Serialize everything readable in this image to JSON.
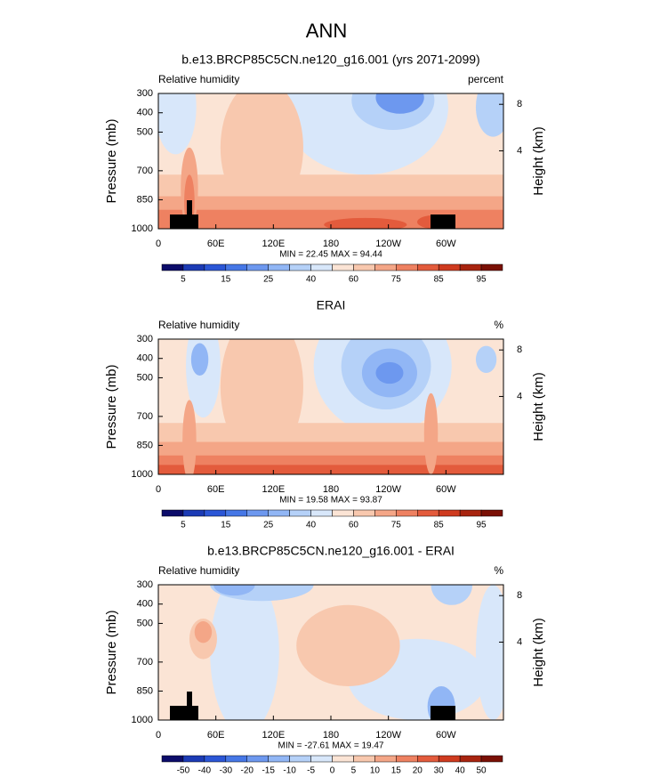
{
  "suptitle": "ANN",
  "chart_data": [
    {
      "type": "contour",
      "title": "b.e13.BRCP85C5CN.ne120_g16.001 (yrs 2071-2099)",
      "left_label": "Relative humidity",
      "right_label": "percent",
      "ylabel": "Pressure (mb)",
      "y2label": "Height (km)",
      "xlim": [
        0,
        360
      ],
      "ylim": [
        1000,
        300
      ],
      "xticks": [
        0,
        {
          "value": 60,
          "label": "60E"
        },
        {
          "value": 120,
          "label": "120E"
        },
        180,
        {
          "value": 240,
          "label": "120W"
        },
        {
          "value": 300,
          "label": "60W"
        }
      ],
      "yticks": [
        300,
        400,
        500,
        700,
        850,
        1000
      ],
      "y2ticks": [
        4,
        8
      ],
      "stats": "MIN = 22.45  MAX = 94.44",
      "colorbar": {
        "labels": [
          5,
          15,
          25,
          40,
          60,
          75,
          85,
          95
        ],
        "colors": [
          "#0c0c6a",
          "#1c3bb5",
          "#2b56d6",
          "#4677e6",
          "#6d98ef",
          "#91b6f5",
          "#b5d1f8",
          "#d8e7fa",
          "#fbe4d5",
          "#f8c8ae",
          "#f4a687",
          "#ee8161",
          "#e35b3c",
          "#cf3b1f",
          "#a8240f",
          "#7a1005"
        ]
      }
    },
    {
      "type": "contour",
      "title": "ERAI",
      "left_label": "Relative humidity",
      "right_label": "%",
      "ylabel": "Pressure (mb)",
      "y2label": "Height (km)",
      "xlim": [
        0,
        360
      ],
      "ylim": [
        1000,
        300
      ],
      "xticks": [
        0,
        {
          "value": 60,
          "label": "60E"
        },
        {
          "value": 120,
          "label": "120E"
        },
        180,
        {
          "value": 240,
          "label": "120W"
        },
        {
          "value": 300,
          "label": "60W"
        }
      ],
      "yticks": [
        300,
        400,
        500,
        700,
        850,
        1000
      ],
      "y2ticks": [
        4,
        8
      ],
      "stats": "MIN = 19.58  MAX = 93.87",
      "colorbar": {
        "labels": [
          5,
          15,
          25,
          40,
          60,
          75,
          85,
          95
        ],
        "colors": [
          "#0c0c6a",
          "#1c3bb5",
          "#2b56d6",
          "#4677e6",
          "#6d98ef",
          "#91b6f5",
          "#b5d1f8",
          "#d8e7fa",
          "#fbe4d5",
          "#f8c8ae",
          "#f4a687",
          "#ee8161",
          "#e35b3c",
          "#cf3b1f",
          "#a8240f",
          "#7a1005"
        ]
      }
    },
    {
      "type": "contour",
      "title": "b.e13.BRCP85C5CN.ne120_g16.001 - ERAI",
      "left_label": "Relative humidity",
      "right_label": "%",
      "ylabel": "Pressure (mb)",
      "y2label": "Height (km)",
      "xlim": [
        0,
        360
      ],
      "ylim": [
        1000,
        300
      ],
      "xticks": [
        0,
        {
          "value": 60,
          "label": "60E"
        },
        {
          "value": 120,
          "label": "120E"
        },
        180,
        {
          "value": 240,
          "label": "120W"
        },
        {
          "value": 300,
          "label": "60W"
        }
      ],
      "yticks": [
        300,
        400,
        500,
        700,
        850,
        1000
      ],
      "y2ticks": [
        4,
        8
      ],
      "stats": "MIN = -27.61  MAX = 19.47",
      "colorbar": {
        "labels": [
          -50,
          -40,
          -30,
          -20,
          -15,
          -10,
          -5,
          0,
          5,
          10,
          15,
          20,
          30,
          40,
          50
        ],
        "colors": [
          "#0c0c6a",
          "#1c3bb5",
          "#2b56d6",
          "#4677e6",
          "#6d98ef",
          "#91b6f5",
          "#b5d1f8",
          "#d8e7fa",
          "#fbe4d5",
          "#f8c8ae",
          "#f4a687",
          "#ee8161",
          "#e35b3c",
          "#cf3b1f",
          "#a8240f",
          "#7a1005"
        ]
      }
    }
  ]
}
